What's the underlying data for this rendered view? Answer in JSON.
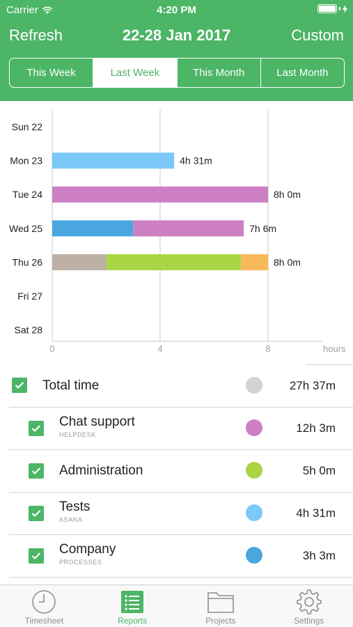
{
  "status_bar": {
    "carrier": "Carrier",
    "time": "4:20 PM"
  },
  "nav": {
    "left_button": "Refresh",
    "title": "22-28 Jan 2017",
    "right_button": "Custom"
  },
  "segments": [
    {
      "label": "This Week",
      "active": false
    },
    {
      "label": "Last Week",
      "active": true
    },
    {
      "label": "This Month",
      "active": false
    },
    {
      "label": "Last Month",
      "active": false
    }
  ],
  "chart_data": {
    "type": "bar",
    "orientation": "horizontal",
    "stacked": true,
    "categories": [
      "Sun 22",
      "Mon 23",
      "Tue 24",
      "Wed 25",
      "Thu 26",
      "Fri 27",
      "Sat 28"
    ],
    "series": [
      {
        "color": "#7cc8f8",
        "values": [
          0,
          4.52,
          0,
          0,
          0,
          0,
          0
        ]
      },
      {
        "color": "#cd7fc4",
        "values": [
          0,
          0,
          8.0,
          4.1,
          0,
          0,
          0
        ]
      },
      {
        "color": "#4aa6df",
        "values": [
          0,
          0,
          0,
          3.0,
          0,
          0,
          0
        ]
      },
      {
        "color": "#bdb0a6",
        "values": [
          0,
          0,
          0,
          0,
          2.0,
          0,
          0
        ]
      },
      {
        "color": "#aad645",
        "values": [
          0,
          0,
          0,
          0,
          5.0,
          0,
          0
        ]
      },
      {
        "color": "#f8b95a",
        "values": [
          0,
          0,
          0,
          0,
          1.0,
          0,
          0
        ]
      }
    ],
    "segments_by_day": [
      [],
      [
        {
          "color": "#7cc8f8",
          "value": 4.52
        }
      ],
      [
        {
          "color": "#cd7fc4",
          "value": 8.0
        }
      ],
      [
        {
          "color": "#4aa6df",
          "value": 3.0
        },
        {
          "color": "#cd7fc4",
          "value": 4.1
        }
      ],
      [
        {
          "color": "#bdb0a6",
          "value": 2.0
        },
        {
          "color": "#aad645",
          "value": 5.0
        },
        {
          "color": "#f8b95a",
          "value": 1.0
        }
      ],
      [],
      []
    ],
    "data_labels": [
      "",
      "4h 31m",
      "8h 0m",
      "7h 6m",
      "8h 0m",
      "",
      ""
    ],
    "xticks": [
      0,
      4,
      8
    ],
    "xlabel": "hours",
    "xlim": [
      0,
      8
    ],
    "grid": true
  },
  "list": {
    "total": {
      "name": "Total time",
      "duration": "27h 37m",
      "color": "#d3d3d3"
    },
    "projects": [
      {
        "name": "Chat support",
        "client": "HELPDESK",
        "duration": "12h 3m",
        "color": "#cd7fc4"
      },
      {
        "name": "Administration",
        "client": "",
        "duration": "5h 0m",
        "color": "#aad645"
      },
      {
        "name": "Tests",
        "client": "ASANA",
        "duration": "4h 31m",
        "color": "#7cc8f8"
      },
      {
        "name": "Company",
        "client": "PROCESSES",
        "duration": "3h 3m",
        "color": "#4aa6df"
      }
    ]
  },
  "tabs": [
    {
      "label": "Timesheet",
      "icon": "clock-icon",
      "active": false
    },
    {
      "label": "Reports",
      "icon": "list-report-icon",
      "active": true
    },
    {
      "label": "Projects",
      "icon": "folder-icon",
      "active": false
    },
    {
      "label": "Settings",
      "icon": "gear-icon",
      "active": false
    }
  ],
  "colors": {
    "accent": "#4cb566"
  }
}
